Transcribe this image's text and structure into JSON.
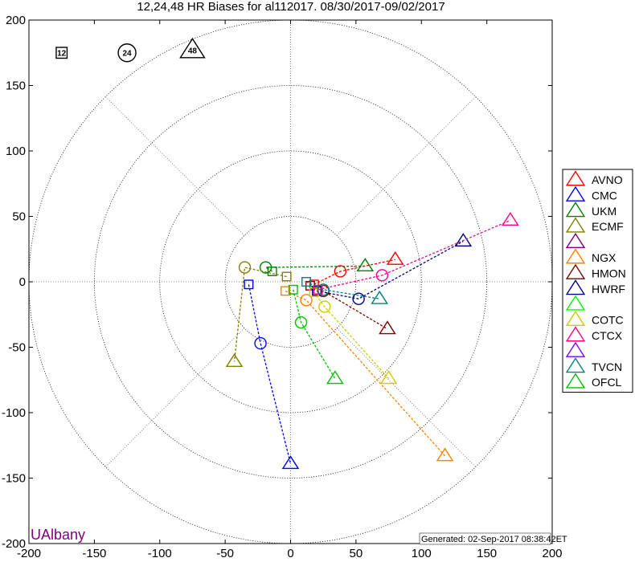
{
  "chart_data": {
    "type": "scatter",
    "title": "12,24,48 HR Biases for al112017. 08/30/2017-09/02/2017",
    "xlabel": "",
    "ylabel": "",
    "xlim": [
      -200,
      200
    ],
    "ylim": [
      -200,
      200
    ],
    "x_ticks": [
      "-200",
      "-150",
      "-100",
      "-50",
      "0",
      "50",
      "100",
      "150",
      "200"
    ],
    "y_ticks": [
      "200",
      "150",
      "100",
      "50",
      "0",
      "-50",
      "-100",
      "-150",
      "-200"
    ],
    "range_rings": [
      50,
      100,
      150,
      200
    ],
    "grid": "polar-dotted",
    "legend_position": "right",
    "marker_key": [
      {
        "hour": "12",
        "marker": "square",
        "x": -175,
        "y": 175
      },
      {
        "hour": "24",
        "marker": "circle",
        "x": -125,
        "y": 175
      },
      {
        "hour": "48",
        "marker": "triangle",
        "x": -75,
        "y": 177
      }
    ],
    "series": [
      {
        "name": "AVNO",
        "color": "#ff0000",
        "points": [
          [
            18,
            -2
          ],
          [
            38,
            8
          ],
          [
            80,
            17
          ]
        ]
      },
      {
        "name": "CMC",
        "color": "#0000ff",
        "points": [
          [
            -32,
            -2
          ],
          [
            -23,
            -47
          ],
          [
            0,
            -139
          ]
        ]
      },
      {
        "name": "UKM",
        "color": "#008000",
        "points": [
          [
            -14,
            8
          ],
          [
            -19,
            11
          ],
          [
            57,
            12
          ]
        ]
      },
      {
        "name": "ECMF",
        "color": "#808000",
        "points": [
          [
            -3,
            4
          ],
          [
            -35,
            11
          ],
          [
            -43,
            -61
          ]
        ]
      },
      {
        "name": "",
        "color": "#800080",
        "points": []
      },
      {
        "name": "NGX",
        "color": "#ff8000",
        "points": [
          [
            -4,
            -7
          ],
          [
            12,
            -14
          ],
          [
            118,
            -133
          ]
        ]
      },
      {
        "name": "HMON",
        "color": "#800000",
        "points": [
          [
            15,
            -3
          ],
          [
            25,
            -7
          ],
          [
            74,
            -36
          ]
        ]
      },
      {
        "name": "HWRF",
        "color": "#000080",
        "points": [
          [
            20,
            -7
          ],
          [
            52,
            -13
          ],
          [
            132,
            31
          ]
        ]
      },
      {
        "name": "",
        "color": "#00ff00",
        "points": []
      },
      {
        "name": "COTC",
        "color": "#cccc00",
        "points": [
          [
            18,
            -8
          ],
          [
            26,
            -19
          ],
          [
            75,
            -74
          ]
        ]
      },
      {
        "name": "CTCX",
        "color": "#ff0090",
        "points": [
          [
            21,
            -6
          ],
          [
            70,
            5
          ],
          [
            168,
            47
          ]
        ]
      },
      {
        "name": "",
        "color": "#8000ff",
        "points": []
      },
      {
        "name": "TVCN",
        "color": "#008080",
        "points": [
          [
            12,
            0
          ],
          [
            25,
            -6
          ],
          [
            68,
            -13
          ]
        ]
      },
      {
        "name": "OFCL",
        "color": "#00c000",
        "points": [
          [
            2,
            -6
          ],
          [
            8,
            -31
          ],
          [
            34,
            -74
          ]
        ]
      }
    ]
  },
  "footer": {
    "brand": "UAlbany",
    "generated": "Generated: 02-Sep-2017 08:38:42ET"
  }
}
